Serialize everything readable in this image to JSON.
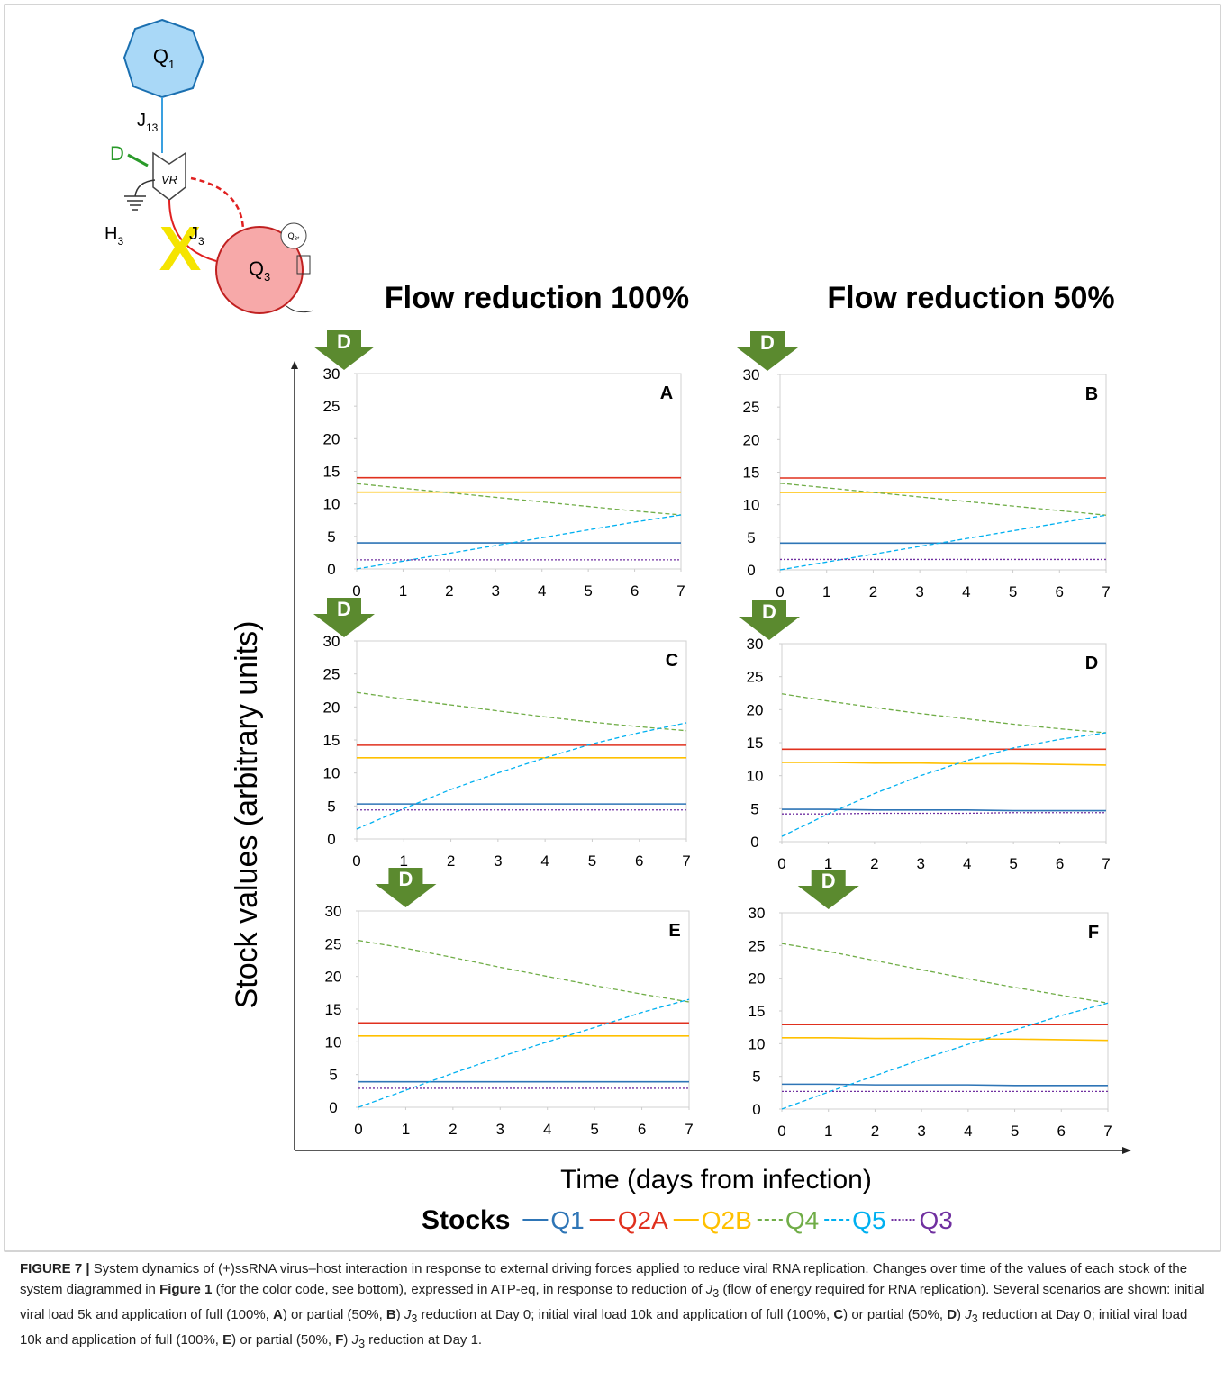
{
  "diagram": {
    "q1": {
      "text": "Q",
      "sub": "1"
    },
    "j13": {
      "text": "J",
      "sub": "13"
    },
    "d": "D",
    "vr": "VR",
    "h3": {
      "text": "H",
      "sub": "3"
    },
    "x": "X",
    "j3": {
      "text": "J",
      "sub": "3"
    },
    "q3": {
      "text": "Q",
      "sub": "3"
    },
    "q3star": {
      "text": "Q",
      "sub": "3*"
    }
  },
  "column_titles": [
    "Flow reduction 100%",
    "Flow reduction 50%"
  ],
  "y_label": "Stock values (arbitrary units)",
  "x_label": "Time (days from infection)",
  "legend_title": "Stocks",
  "chart_data": [
    {
      "type": "line",
      "panel": "A",
      "annotation": {
        "text": "D",
        "x": 0
      },
      "x": [
        0,
        1,
        2,
        3,
        4,
        5,
        6,
        7
      ],
      "xlim": [
        0,
        7
      ],
      "xticks": [
        0,
        1,
        2,
        3,
        4,
        5,
        6,
        7
      ],
      "ylim": [
        0,
        30
      ],
      "yticks": [
        0,
        5,
        10,
        15,
        20,
        25,
        30
      ],
      "series": [
        {
          "name": "Q1",
          "color": "#2e75b6",
          "style": "solid",
          "values": [
            4.0,
            4.0,
            4.0,
            4.0,
            4.0,
            4.0,
            4.0,
            4.0
          ]
        },
        {
          "name": "Q2A",
          "color": "#e0301e",
          "style": "solid",
          "values": [
            14.0,
            14.0,
            14.0,
            14.0,
            14.0,
            14.0,
            14.0,
            14.0
          ]
        },
        {
          "name": "Q2B",
          "color": "#ffc000",
          "style": "solid",
          "values": [
            11.8,
            11.8,
            11.8,
            11.8,
            11.8,
            11.8,
            11.8,
            11.8
          ]
        },
        {
          "name": "Q4",
          "color": "#70ad47",
          "style": "dashed",
          "values": [
            13.1,
            12.4,
            11.7,
            11.0,
            10.3,
            9.6,
            8.9,
            8.3
          ]
        },
        {
          "name": "Q5",
          "color": "#00b0f0",
          "style": "dashed",
          "values": [
            0,
            1.2,
            2.4,
            3.6,
            4.8,
            6.0,
            7.2,
            8.3
          ]
        },
        {
          "name": "Q3",
          "color": "#7030a0",
          "style": "dotted",
          "values": [
            1.4,
            1.4,
            1.4,
            1.4,
            1.4,
            1.4,
            1.4,
            1.4
          ]
        }
      ]
    },
    {
      "type": "line",
      "panel": "B",
      "annotation": {
        "text": "D",
        "x": 0
      },
      "x": [
        0,
        1,
        2,
        3,
        4,
        5,
        6,
        7
      ],
      "xlim": [
        0,
        7
      ],
      "xticks": [
        0,
        1,
        2,
        3,
        4,
        5,
        6,
        7
      ],
      "ylim": [
        0,
        30
      ],
      "yticks": [
        0,
        5,
        10,
        15,
        20,
        25,
        30
      ],
      "series": [
        {
          "name": "Q1",
          "color": "#2e75b6",
          "style": "solid",
          "values": [
            4.1,
            4.1,
            4.1,
            4.1,
            4.1,
            4.1,
            4.1,
            4.1
          ]
        },
        {
          "name": "Q2A",
          "color": "#e0301e",
          "style": "solid",
          "values": [
            14.1,
            14.1,
            14.1,
            14.1,
            14.1,
            14.1,
            14.1,
            14.1
          ]
        },
        {
          "name": "Q2B",
          "color": "#ffc000",
          "style": "solid",
          "values": [
            11.9,
            11.9,
            11.9,
            11.9,
            11.9,
            11.9,
            11.9,
            11.9
          ]
        },
        {
          "name": "Q4",
          "color": "#70ad47",
          "style": "dashed",
          "values": [
            13.3,
            12.6,
            11.9,
            11.2,
            10.5,
            9.8,
            9.1,
            8.4
          ]
        },
        {
          "name": "Q5",
          "color": "#00b0f0",
          "style": "dashed",
          "values": [
            0,
            1.2,
            2.4,
            3.6,
            4.8,
            6.0,
            7.2,
            8.4
          ]
        },
        {
          "name": "Q3",
          "color": "#7030a0",
          "style": "dotted",
          "values": [
            1.6,
            1.6,
            1.6,
            1.6,
            1.6,
            1.6,
            1.6,
            1.6
          ]
        }
      ]
    },
    {
      "type": "line",
      "panel": "C",
      "annotation": {
        "text": "D",
        "x": 0
      },
      "x": [
        0,
        1,
        2,
        3,
        4,
        5,
        6,
        7
      ],
      "xlim": [
        0,
        7
      ],
      "xticks": [
        0,
        1,
        2,
        3,
        4,
        5,
        6,
        7
      ],
      "ylim": [
        0,
        30
      ],
      "yticks": [
        0,
        5,
        10,
        15,
        20,
        25,
        30
      ],
      "series": [
        {
          "name": "Q1",
          "color": "#2e75b6",
          "style": "solid",
          "values": [
            5.3,
            5.3,
            5.3,
            5.3,
            5.3,
            5.3,
            5.3,
            5.3
          ]
        },
        {
          "name": "Q2A",
          "color": "#e0301e",
          "style": "solid",
          "values": [
            14.2,
            14.2,
            14.2,
            14.2,
            14.2,
            14.2,
            14.2,
            14.2
          ]
        },
        {
          "name": "Q2B",
          "color": "#ffc000",
          "style": "solid",
          "values": [
            12.3,
            12.3,
            12.3,
            12.3,
            12.3,
            12.3,
            12.3,
            12.3
          ]
        },
        {
          "name": "Q4",
          "color": "#70ad47",
          "style": "dashed",
          "values": [
            22.2,
            21.2,
            20.3,
            19.4,
            18.5,
            17.7,
            17.0,
            16.4
          ]
        },
        {
          "name": "Q5",
          "color": "#00b0f0",
          "style": "dashed",
          "values": [
            1.5,
            4.6,
            7.5,
            10.0,
            12.3,
            14.4,
            16.1,
            17.6
          ]
        },
        {
          "name": "Q3",
          "color": "#7030a0",
          "style": "dotted",
          "values": [
            4.4,
            4.4,
            4.4,
            4.4,
            4.4,
            4.4,
            4.4,
            4.4
          ]
        }
      ]
    },
    {
      "type": "line",
      "panel": "D",
      "annotation": {
        "text": "D",
        "x": 0
      },
      "x": [
        0,
        1,
        2,
        3,
        4,
        5,
        6,
        7
      ],
      "xlim": [
        0,
        7
      ],
      "xticks": [
        0,
        1,
        2,
        3,
        4,
        5,
        6,
        7
      ],
      "ylim": [
        0,
        30
      ],
      "yticks": [
        0,
        5,
        10,
        15,
        20,
        25,
        30
      ],
      "series": [
        {
          "name": "Q1",
          "color": "#2e75b6",
          "style": "solid",
          "values": [
            4.9,
            4.9,
            4.8,
            4.8,
            4.8,
            4.7,
            4.7,
            4.7
          ]
        },
        {
          "name": "Q2A",
          "color": "#e0301e",
          "style": "solid",
          "values": [
            14.0,
            14.0,
            14.0,
            14.0,
            14.0,
            14.0,
            14.0,
            14.0
          ]
        },
        {
          "name": "Q2B",
          "color": "#ffc000",
          "style": "solid",
          "values": [
            12.0,
            12.0,
            11.9,
            11.9,
            11.8,
            11.8,
            11.7,
            11.6
          ]
        },
        {
          "name": "Q4",
          "color": "#70ad47",
          "style": "dashed",
          "values": [
            22.4,
            21.3,
            20.3,
            19.4,
            18.6,
            17.8,
            17.1,
            16.5
          ]
        },
        {
          "name": "Q5",
          "color": "#00b0f0",
          "style": "dashed",
          "values": [
            0.8,
            4.2,
            7.3,
            10.0,
            12.3,
            14.2,
            15.5,
            16.5
          ]
        },
        {
          "name": "Q3",
          "color": "#7030a0",
          "style": "dotted",
          "values": [
            4.2,
            4.2,
            4.3,
            4.3,
            4.3,
            4.4,
            4.4,
            4.4
          ]
        }
      ]
    },
    {
      "type": "line",
      "panel": "E",
      "annotation": {
        "text": "D",
        "x": 1
      },
      "x": [
        0,
        1,
        2,
        3,
        4,
        5,
        6,
        7
      ],
      "xlim": [
        0,
        7
      ],
      "xticks": [
        0,
        1,
        2,
        3,
        4,
        5,
        6,
        7
      ],
      "ylim": [
        0,
        30
      ],
      "yticks": [
        0,
        5,
        10,
        15,
        20,
        25,
        30
      ],
      "series": [
        {
          "name": "Q1",
          "color": "#2e75b6",
          "style": "solid",
          "values": [
            3.9,
            3.9,
            3.9,
            3.9,
            3.9,
            3.9,
            3.9,
            3.9
          ]
        },
        {
          "name": "Q2A",
          "color": "#e0301e",
          "style": "solid",
          "values": [
            12.9,
            12.9,
            12.9,
            12.9,
            12.9,
            12.9,
            12.9,
            12.9
          ]
        },
        {
          "name": "Q2B",
          "color": "#ffc000",
          "style": "solid",
          "values": [
            10.9,
            10.9,
            10.9,
            10.9,
            10.9,
            10.9,
            10.9,
            10.9
          ]
        },
        {
          "name": "Q4",
          "color": "#70ad47",
          "style": "dashed",
          "values": [
            25.5,
            24.3,
            22.9,
            21.4,
            20.0,
            18.6,
            17.3,
            16.1
          ]
        },
        {
          "name": "Q5",
          "color": "#00b0f0",
          "style": "dashed",
          "values": [
            0,
            2.6,
            5.2,
            7.7,
            10.0,
            12.2,
            14.5,
            16.5
          ]
        },
        {
          "name": "Q3",
          "color": "#7030a0",
          "style": "dotted",
          "values": [
            2.9,
            2.9,
            2.9,
            2.9,
            2.9,
            2.9,
            2.9,
            2.9
          ]
        }
      ]
    },
    {
      "type": "line",
      "panel": "F",
      "annotation": {
        "text": "D",
        "x": 1
      },
      "x": [
        0,
        1,
        2,
        3,
        4,
        5,
        6,
        7
      ],
      "xlim": [
        0,
        7
      ],
      "xticks": [
        0,
        1,
        2,
        3,
        4,
        5,
        6,
        7
      ],
      "ylim": [
        0,
        30
      ],
      "yticks": [
        0,
        5,
        10,
        15,
        20,
        25,
        30
      ],
      "series": [
        {
          "name": "Q1",
          "color": "#2e75b6",
          "style": "solid",
          "values": [
            3.8,
            3.8,
            3.7,
            3.7,
            3.7,
            3.6,
            3.6,
            3.6
          ]
        },
        {
          "name": "Q2A",
          "color": "#e0301e",
          "style": "solid",
          "values": [
            12.9,
            12.9,
            12.9,
            12.9,
            12.9,
            12.9,
            12.9,
            12.9
          ]
        },
        {
          "name": "Q2B",
          "color": "#ffc000",
          "style": "solid",
          "values": [
            10.9,
            10.9,
            10.8,
            10.8,
            10.7,
            10.7,
            10.6,
            10.5
          ]
        },
        {
          "name": "Q4",
          "color": "#70ad47",
          "style": "dashed",
          "values": [
            25.3,
            24.1,
            22.7,
            21.3,
            19.9,
            18.6,
            17.4,
            16.2
          ]
        },
        {
          "name": "Q5",
          "color": "#00b0f0",
          "style": "dashed",
          "values": [
            0,
            2.6,
            5.1,
            7.6,
            9.9,
            12.1,
            14.3,
            16.2
          ]
        },
        {
          "name": "Q3",
          "color": "#7030a0",
          "style": "dotted",
          "values": [
            2.7,
            2.7,
            2.7,
            2.7,
            2.7,
            2.7,
            2.7,
            2.7
          ]
        }
      ]
    }
  ],
  "caption": [
    {
      "text": "FIGURE 7 |",
      "style": "bold"
    },
    {
      "text": " System dynamics of (+)ssRNA virus–host interaction in response to external driving forces applied to reduce viral RNA replication. Changes over time of the values of each stock of the system diagrammed in "
    },
    {
      "text": "Figure 1",
      "style": "bold"
    },
    {
      "text": " (for the color code, see bottom), expressed in ATP-eq, in response to reduction of "
    },
    {
      "text": "J",
      "style": "italic"
    },
    {
      "text": "3",
      "style": "sub"
    },
    {
      "text": " (flow of energy required for RNA replication). Several scenarios are shown: initial viral load 5k and application of full (100%, "
    },
    {
      "text": "A",
      "style": "bold"
    },
    {
      "text": ") or partial (50%, "
    },
    {
      "text": "B",
      "style": "bold"
    },
    {
      "text": ") "
    },
    {
      "text": "J",
      "style": "italic"
    },
    {
      "text": "3",
      "style": "sub"
    },
    {
      "text": " reduction at Day 0; initial viral load 10k and application of full (100%, "
    },
    {
      "text": "C",
      "style": "bold"
    },
    {
      "text": ") or partial (50%, "
    },
    {
      "text": "D",
      "style": "bold"
    },
    {
      "text": ") "
    },
    {
      "text": "J",
      "style": "italic"
    },
    {
      "text": "3",
      "style": "sub"
    },
    {
      "text": " reduction at Day 0; initial viral load 10k and application of full (100%, "
    },
    {
      "text": "E",
      "style": "bold"
    },
    {
      "text": ") or partial (50%, "
    },
    {
      "text": "F",
      "style": "bold"
    },
    {
      "text": ") "
    },
    {
      "text": "J",
      "style": "italic"
    },
    {
      "text": "3",
      "style": "sub"
    },
    {
      "text": " reduction at Day 1."
    }
  ]
}
